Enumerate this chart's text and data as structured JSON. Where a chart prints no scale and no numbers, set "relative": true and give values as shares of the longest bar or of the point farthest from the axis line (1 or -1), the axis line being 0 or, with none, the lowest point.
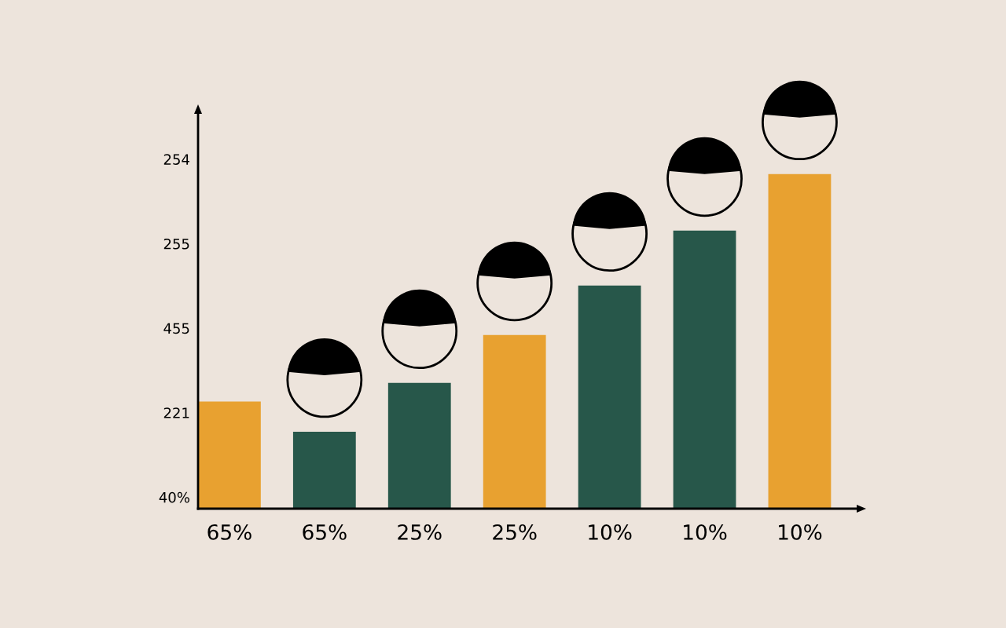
{
  "chart_data": {
    "type": "bar",
    "relative": true,
    "categories": [
      "65%",
      "65%",
      "25%",
      "25%",
      "10%",
      "10%",
      "10%"
    ],
    "values": [
      0.32,
      0.23,
      0.376,
      0.519,
      0.667,
      0.831,
      1
    ],
    "colors": [
      "#e8a130",
      "#27574a",
      "#27574a",
      "#e8a130",
      "#27574a",
      "#27574a",
      "#e8a130"
    ],
    "annotations": [
      "254",
      "255",
      "455",
      "221",
      "40%"
    ],
    "grid": false
  }
}
